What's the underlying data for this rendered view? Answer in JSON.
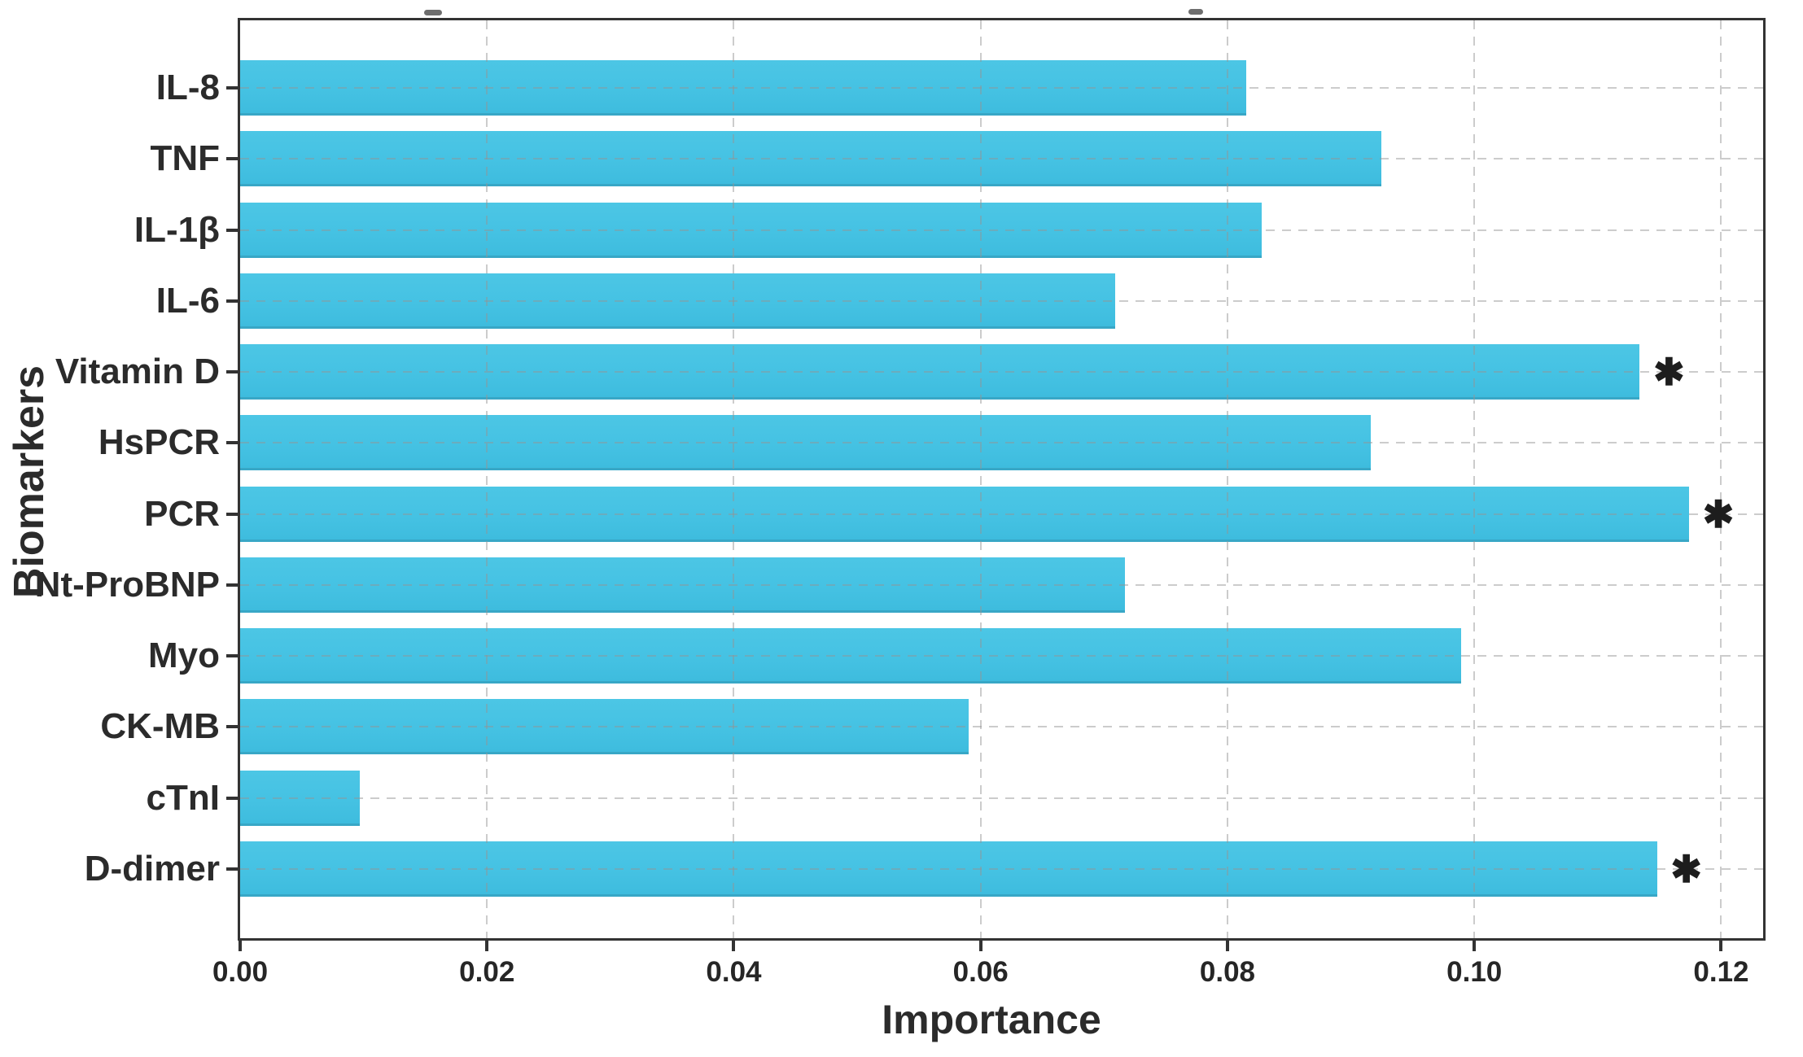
{
  "chart_data": {
    "type": "bar",
    "orientation": "horizontal",
    "title": "",
    "xlabel": "Importance",
    "ylabel": "Biomarkers",
    "categories": [
      "IL-8",
      "TNF",
      "IL-1β",
      "IL-6",
      "Vitamin D",
      "HsPCR",
      "PCR",
      "Nt-ProBNP",
      "Myo",
      "CK-MB",
      "cTnI",
      "D-dimer"
    ],
    "values": [
      0.0815,
      0.0925,
      0.0828,
      0.0709,
      0.1134,
      0.0916,
      0.1174,
      0.0717,
      0.0989,
      0.059,
      0.0097,
      0.1148
    ],
    "significant": [
      false,
      false,
      false,
      false,
      true,
      false,
      true,
      false,
      false,
      false,
      false,
      true
    ],
    "significance_marker": "*",
    "x_ticks": [
      0.0,
      0.02,
      0.04,
      0.06,
      0.08,
      0.1,
      0.12
    ],
    "x_tick_labels": [
      "0.00",
      "0.02",
      "0.04",
      "0.06",
      "0.08",
      "0.10",
      "0.12"
    ],
    "xlim": [
      0,
      0.1234
    ],
    "grid": "dashed, vertical at x ticks and horizontal at category centers",
    "legend": "none",
    "bar_color": "#45c2e3",
    "frame_color": "#333333",
    "grid_color": "#bdbdbd",
    "text_color": "#2b2b2b"
  }
}
